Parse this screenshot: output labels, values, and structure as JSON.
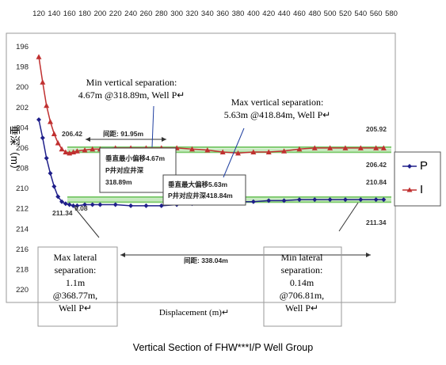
{
  "chart_data": {
    "type": "line",
    "caption": "Vertical Section of FHW***I/P Well Group",
    "xlabel": "Displacement (m)",
    "ylabel": "垂深（m）",
    "x_ticks": [
      120,
      140,
      160,
      180,
      200,
      220,
      240,
      260,
      280,
      300,
      320,
      340,
      360,
      380,
      400,
      420,
      440,
      460,
      480,
      500,
      520,
      540,
      560,
      580
    ],
    "y_ticks": [
      196,
      198,
      200,
      202,
      204,
      206,
      208,
      210,
      212,
      214,
      216,
      218,
      220
    ],
    "xlim": [
      120,
      580
    ],
    "ylim": [
      196,
      220
    ],
    "y_inverted": true,
    "series": [
      {
        "name": "P",
        "color": "#1f1f8a",
        "marker": "diamond",
        "x": [
          120,
          125,
          130,
          135,
          140,
          145,
          150,
          155,
          160,
          165,
          170,
          180,
          190,
          200,
          220,
          240,
          260,
          280,
          300,
          320,
          340,
          360,
          380,
          400,
          420,
          440,
          460,
          480,
          500,
          520,
          540,
          560,
          570
        ],
        "y": [
          203.2,
          205,
          207,
          208.5,
          209.8,
          210.8,
          211.3,
          211.5,
          211.6,
          211.7,
          211.7,
          211.6,
          211.6,
          211.6,
          211.6,
          211.7,
          211.7,
          211.7,
          211.6,
          211.5,
          211.4,
          211.4,
          211.3,
          211.3,
          211.2,
          211.2,
          211.1,
          211.1,
          211.1,
          211.1,
          211.1,
          211.1,
          211.1
        ]
      },
      {
        "name": "I",
        "color": "#c03030",
        "marker": "triangle",
        "x": [
          120,
          125,
          130,
          135,
          140,
          145,
          150,
          155,
          160,
          165,
          170,
          180,
          190,
          200,
          220,
          240,
          260,
          280,
          300,
          320,
          340,
          360,
          380,
          400,
          420,
          440,
          460,
          480,
          500,
          520,
          540,
          560,
          570
        ],
        "y": [
          197,
          199.5,
          201.8,
          203.4,
          204.6,
          205.5,
          206.1,
          206.4,
          206.5,
          206.4,
          206.3,
          206.2,
          206.1,
          206.1,
          206.0,
          206.0,
          206.0,
          206.0,
          206.0,
          206.1,
          206.2,
          206.4,
          206.5,
          206.4,
          206.4,
          206.3,
          206.1,
          206.0,
          206.0,
          206.0,
          206.0,
          206.0,
          206.0
        ]
      }
    ],
    "reference_lines": [
      205.92,
      206.42,
      210.84,
      211.34
    ],
    "green_band_color": "#7cc96b",
    "data_labels": [
      {
        "text": "205.92"
      },
      {
        "text": "206.42"
      },
      {
        "text": "206.42"
      },
      {
        "text": "210.84"
      },
      {
        "text": "211.34"
      },
      {
        "text": "211.34"
      },
      {
        "text": "9.08"
      }
    ],
    "dim_labels": [
      {
        "text": "间距: 91.95m"
      },
      {
        "text": "间距: 338.04m"
      }
    ],
    "boxes": [
      {
        "lines": [
          "垂直最小偏移4.67m",
          "P井对应井深",
          "318.89m"
        ]
      },
      {
        "lines": [
          "垂直最大偏移5.63m",
          "P井对应井深418.84m"
        ]
      }
    ],
    "callouts": {
      "min_vertical": "Min vertical separation:\n4.67m @318.89m, Well P↵",
      "max_vertical": "Max vertical separation:\n5.63m @418.84m, Well P↵",
      "max_lateral": "Max lateral\nseparation:\n1.1m\n@368.77m,\nWell P↵",
      "min_lateral": "Min lateral\nseparation:\n0.14m\n@706.81m,\nWell P↵",
      "xlabel_mark": "↵"
    },
    "legend": {
      "position": "right",
      "items": [
        "P",
        "I"
      ]
    },
    "grid": false
  }
}
